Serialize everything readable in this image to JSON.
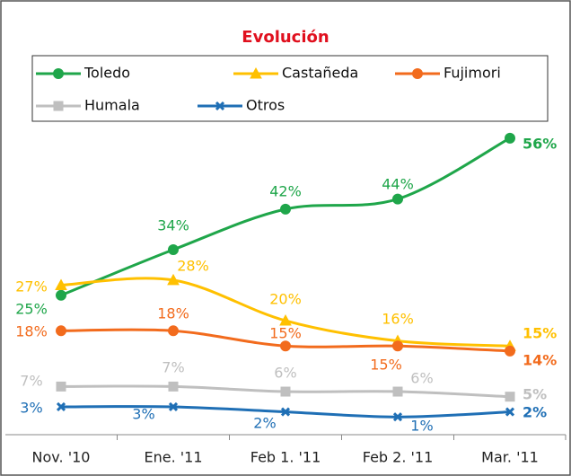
{
  "chart_data": {
    "type": "line",
    "title": "Evolución",
    "categories": [
      "Nov. '10",
      "Ene. '11",
      "Feb 1. '11",
      "Feb 2. '11",
      "Mar. '11"
    ],
    "series": [
      {
        "name": "Toledo",
        "color": "#1fa64a",
        "values": [
          25,
          34,
          42,
          44,
          56
        ],
        "value_labels": [
          "25%",
          "34%",
          "42%",
          "44%",
          "56%"
        ]
      },
      {
        "name": "Castañeda",
        "color": "#ffc000",
        "values": [
          27,
          28,
          20,
          16,
          15
        ],
        "value_labels": [
          "27%",
          "28%",
          "20%",
          "16%",
          "15%"
        ]
      },
      {
        "name": "Fujimori",
        "color": "#f26b1d",
        "values": [
          18,
          18,
          15,
          15,
          14
        ],
        "value_labels": [
          "18%",
          "18%",
          "15%",
          "15%",
          "14%"
        ]
      },
      {
        "name": "Humala",
        "color": "#bfbfbf",
        "values": [
          7,
          7,
          6,
          6,
          5
        ],
        "value_labels": [
          "7%",
          "7%",
          "6%",
          "6%",
          "5%"
        ]
      },
      {
        "name": "Otros",
        "color": "#1f6fb5",
        "values": [
          3,
          3,
          2,
          1,
          2
        ],
        "value_labels": [
          "3%",
          "3%",
          "2%",
          "1%",
          "2%"
        ]
      }
    ],
    "ylim": [
      -2.5,
      62
    ],
    "legend": "top",
    "smooth": true
  }
}
